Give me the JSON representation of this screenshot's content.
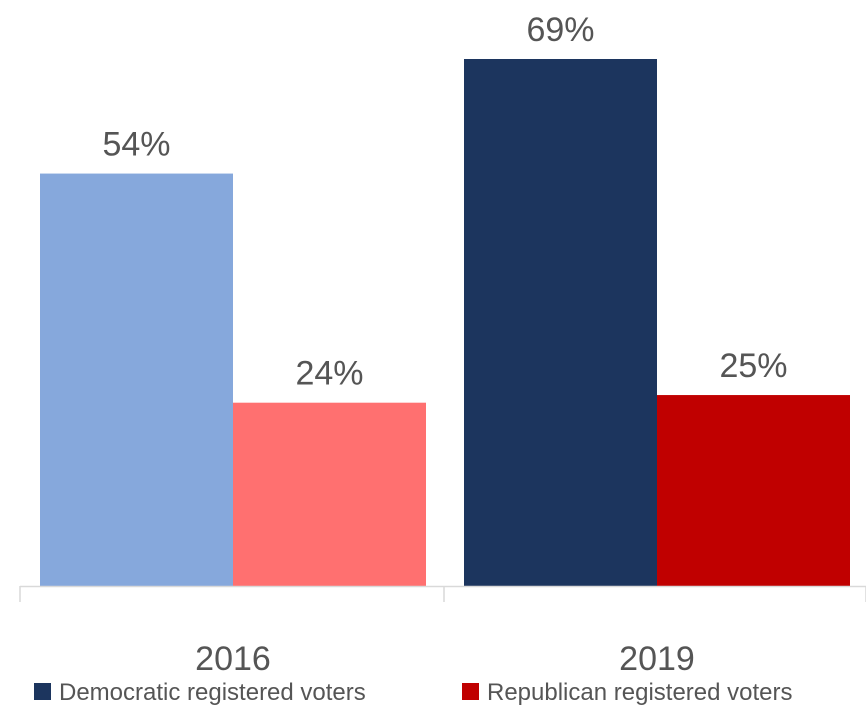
{
  "chart_data": {
    "type": "bar",
    "categories": [
      "2016",
      "2019"
    ],
    "series": [
      {
        "name": "Democratic registered voters",
        "legend_color": "#1c355e",
        "bar_colors": [
          "#86a8dc",
          "#1c355e"
        ],
        "values": [
          54,
          69
        ],
        "labels": [
          "54%",
          "69%"
        ]
      },
      {
        "name": "Republican registered voters",
        "legend_color": "#c00000",
        "bar_colors": [
          "#ff7070",
          "#c00000"
        ],
        "values": [
          24,
          25
        ],
        "labels": [
          "24%",
          "25%"
        ]
      }
    ],
    "unit": "%",
    "ylim": [
      0,
      69
    ],
    "grid": false,
    "legend_position": "bottom"
  }
}
